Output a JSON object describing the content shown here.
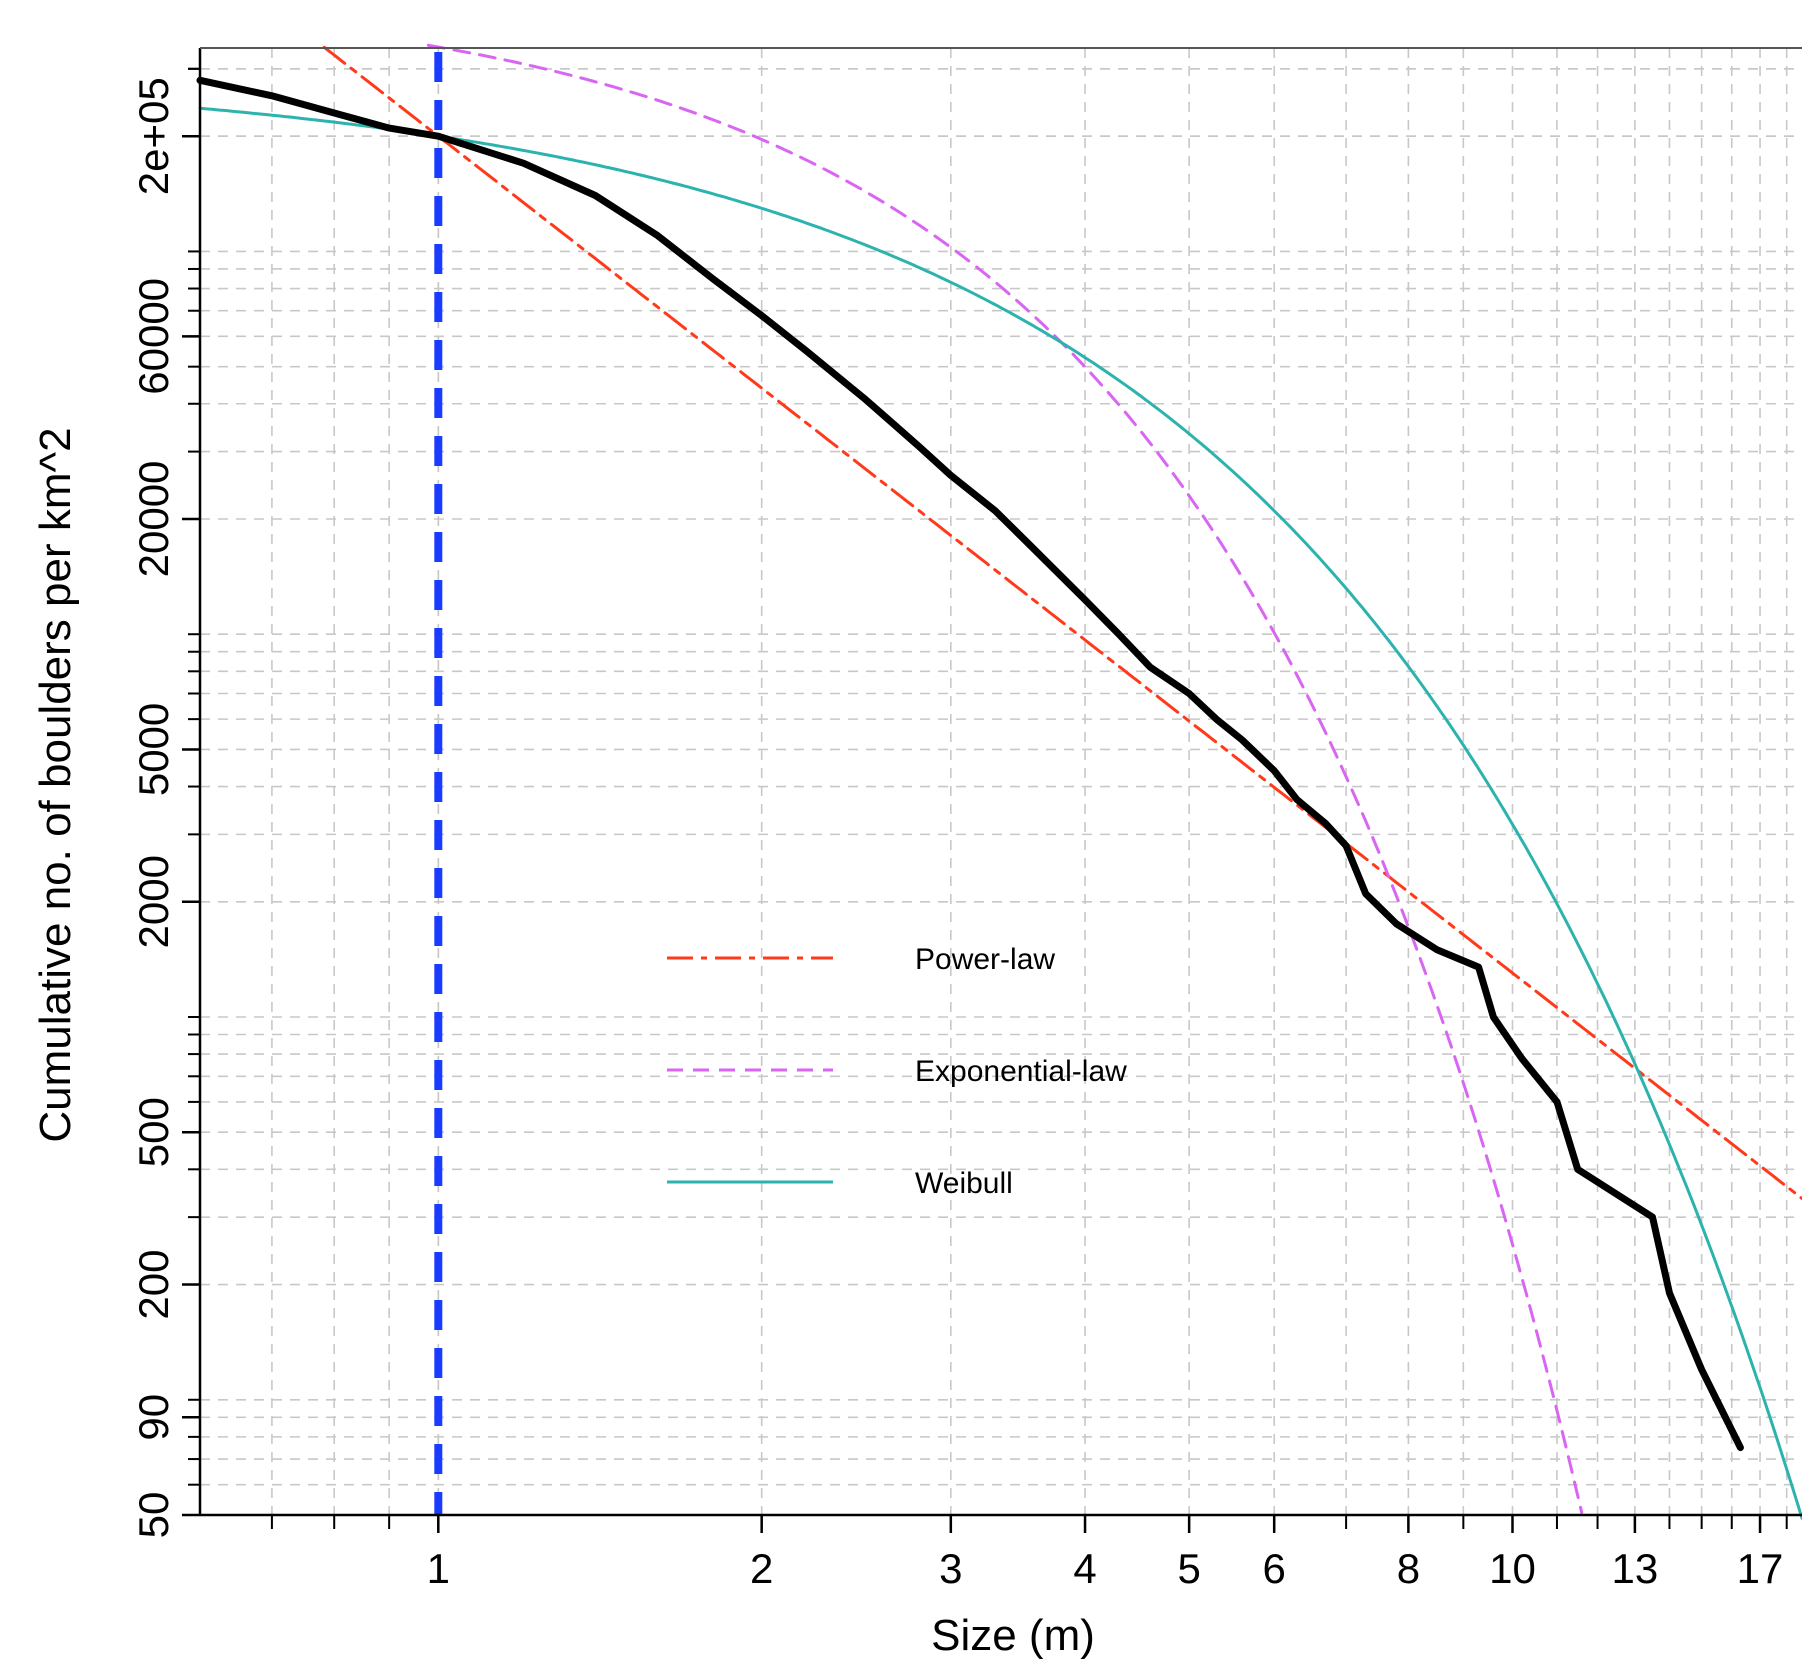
{
  "chart_data": {
    "type": "line",
    "title": "",
    "xlabel": "Size (m)",
    "ylabel": "Cumulative no. of boulders per km^2",
    "x_scale": "log",
    "y_scale": "log",
    "xlim": [
      0.6,
      18.6
    ],
    "ylim": [
      50,
      340000
    ],
    "x_ticks": [
      1,
      2,
      3,
      4,
      5,
      6,
      8,
      10,
      13,
      17
    ],
    "x_tick_labels": [
      "1",
      "2",
      "3",
      "4",
      "5",
      "6",
      "8",
      "10",
      "13",
      "17"
    ],
    "y_ticks": [
      50,
      90,
      200,
      500,
      2000,
      5000,
      20000,
      60000,
      200000
    ],
    "y_tick_labels": [
      "50",
      "90",
      "200",
      "500",
      "2000",
      "5000",
      "20000",
      "60000",
      "2e+05"
    ],
    "grid": true,
    "cutoff_line": {
      "x": 1,
      "color": "#1a3cff",
      "style": "dashed"
    },
    "legend_position": "center-left",
    "series": [
      {
        "name": "",
        "color": "#000000",
        "style": "solid-thick",
        "in_legend": false,
        "points": [
          [
            0.6,
            280000
          ],
          [
            0.7,
            255000
          ],
          [
            0.8,
            230000
          ],
          [
            0.9,
            210000
          ],
          [
            1.0,
            200000
          ],
          [
            1.2,
            170000
          ],
          [
            1.4,
            140000
          ],
          [
            1.6,
            110000
          ],
          [
            1.8,
            85000
          ],
          [
            2.0,
            68000
          ],
          [
            2.2,
            55000
          ],
          [
            2.5,
            41000
          ],
          [
            2.8,
            31000
          ],
          [
            3.0,
            26000
          ],
          [
            3.3,
            21000
          ],
          [
            3.6,
            16500
          ],
          [
            4.0,
            12300
          ],
          [
            4.3,
            10000
          ],
          [
            4.6,
            8200
          ],
          [
            5.0,
            7000
          ],
          [
            5.3,
            6000
          ],
          [
            5.6,
            5300
          ],
          [
            6.0,
            4400
          ],
          [
            6.3,
            3700
          ],
          [
            6.7,
            3200
          ],
          [
            7.0,
            2800
          ],
          [
            7.3,
            2100
          ],
          [
            7.8,
            1750
          ],
          [
            8.5,
            1500
          ],
          [
            9.3,
            1350
          ],
          [
            9.6,
            1000
          ],
          [
            10.2,
            780
          ],
          [
            11.0,
            600
          ],
          [
            11.5,
            400
          ],
          [
            13.5,
            300
          ],
          [
            14.0,
            190
          ],
          [
            15.0,
            120
          ],
          [
            16.3,
            75
          ]
        ]
      },
      {
        "name": "Power-law",
        "color": "#ff3a1a",
        "style": "dashdot",
        "in_legend": true,
        "params": {
          "a": 200000,
          "b": -2.186
        }
      },
      {
        "name": "Exponential-law",
        "color": "#d966f2",
        "style": "dashed",
        "in_legend": true,
        "params": {
          "a": 500000,
          "k": 0.38,
          "p": 1.3
        }
      },
      {
        "name": "Weibull",
        "color": "#2db3ad",
        "style": "solid",
        "in_legend": true,
        "params": {
          "a": 200000,
          "k": 0.405,
          "p": 1.05
        }
      }
    ]
  },
  "legend": {
    "items": [
      {
        "label": "Power-law",
        "color": "#ff3a1a",
        "style": "dashdot"
      },
      {
        "label": "Exponential-law",
        "color": "#d966f2",
        "style": "dashed"
      },
      {
        "label": "Weibull",
        "color": "#2db3ad",
        "style": "solid"
      }
    ]
  }
}
